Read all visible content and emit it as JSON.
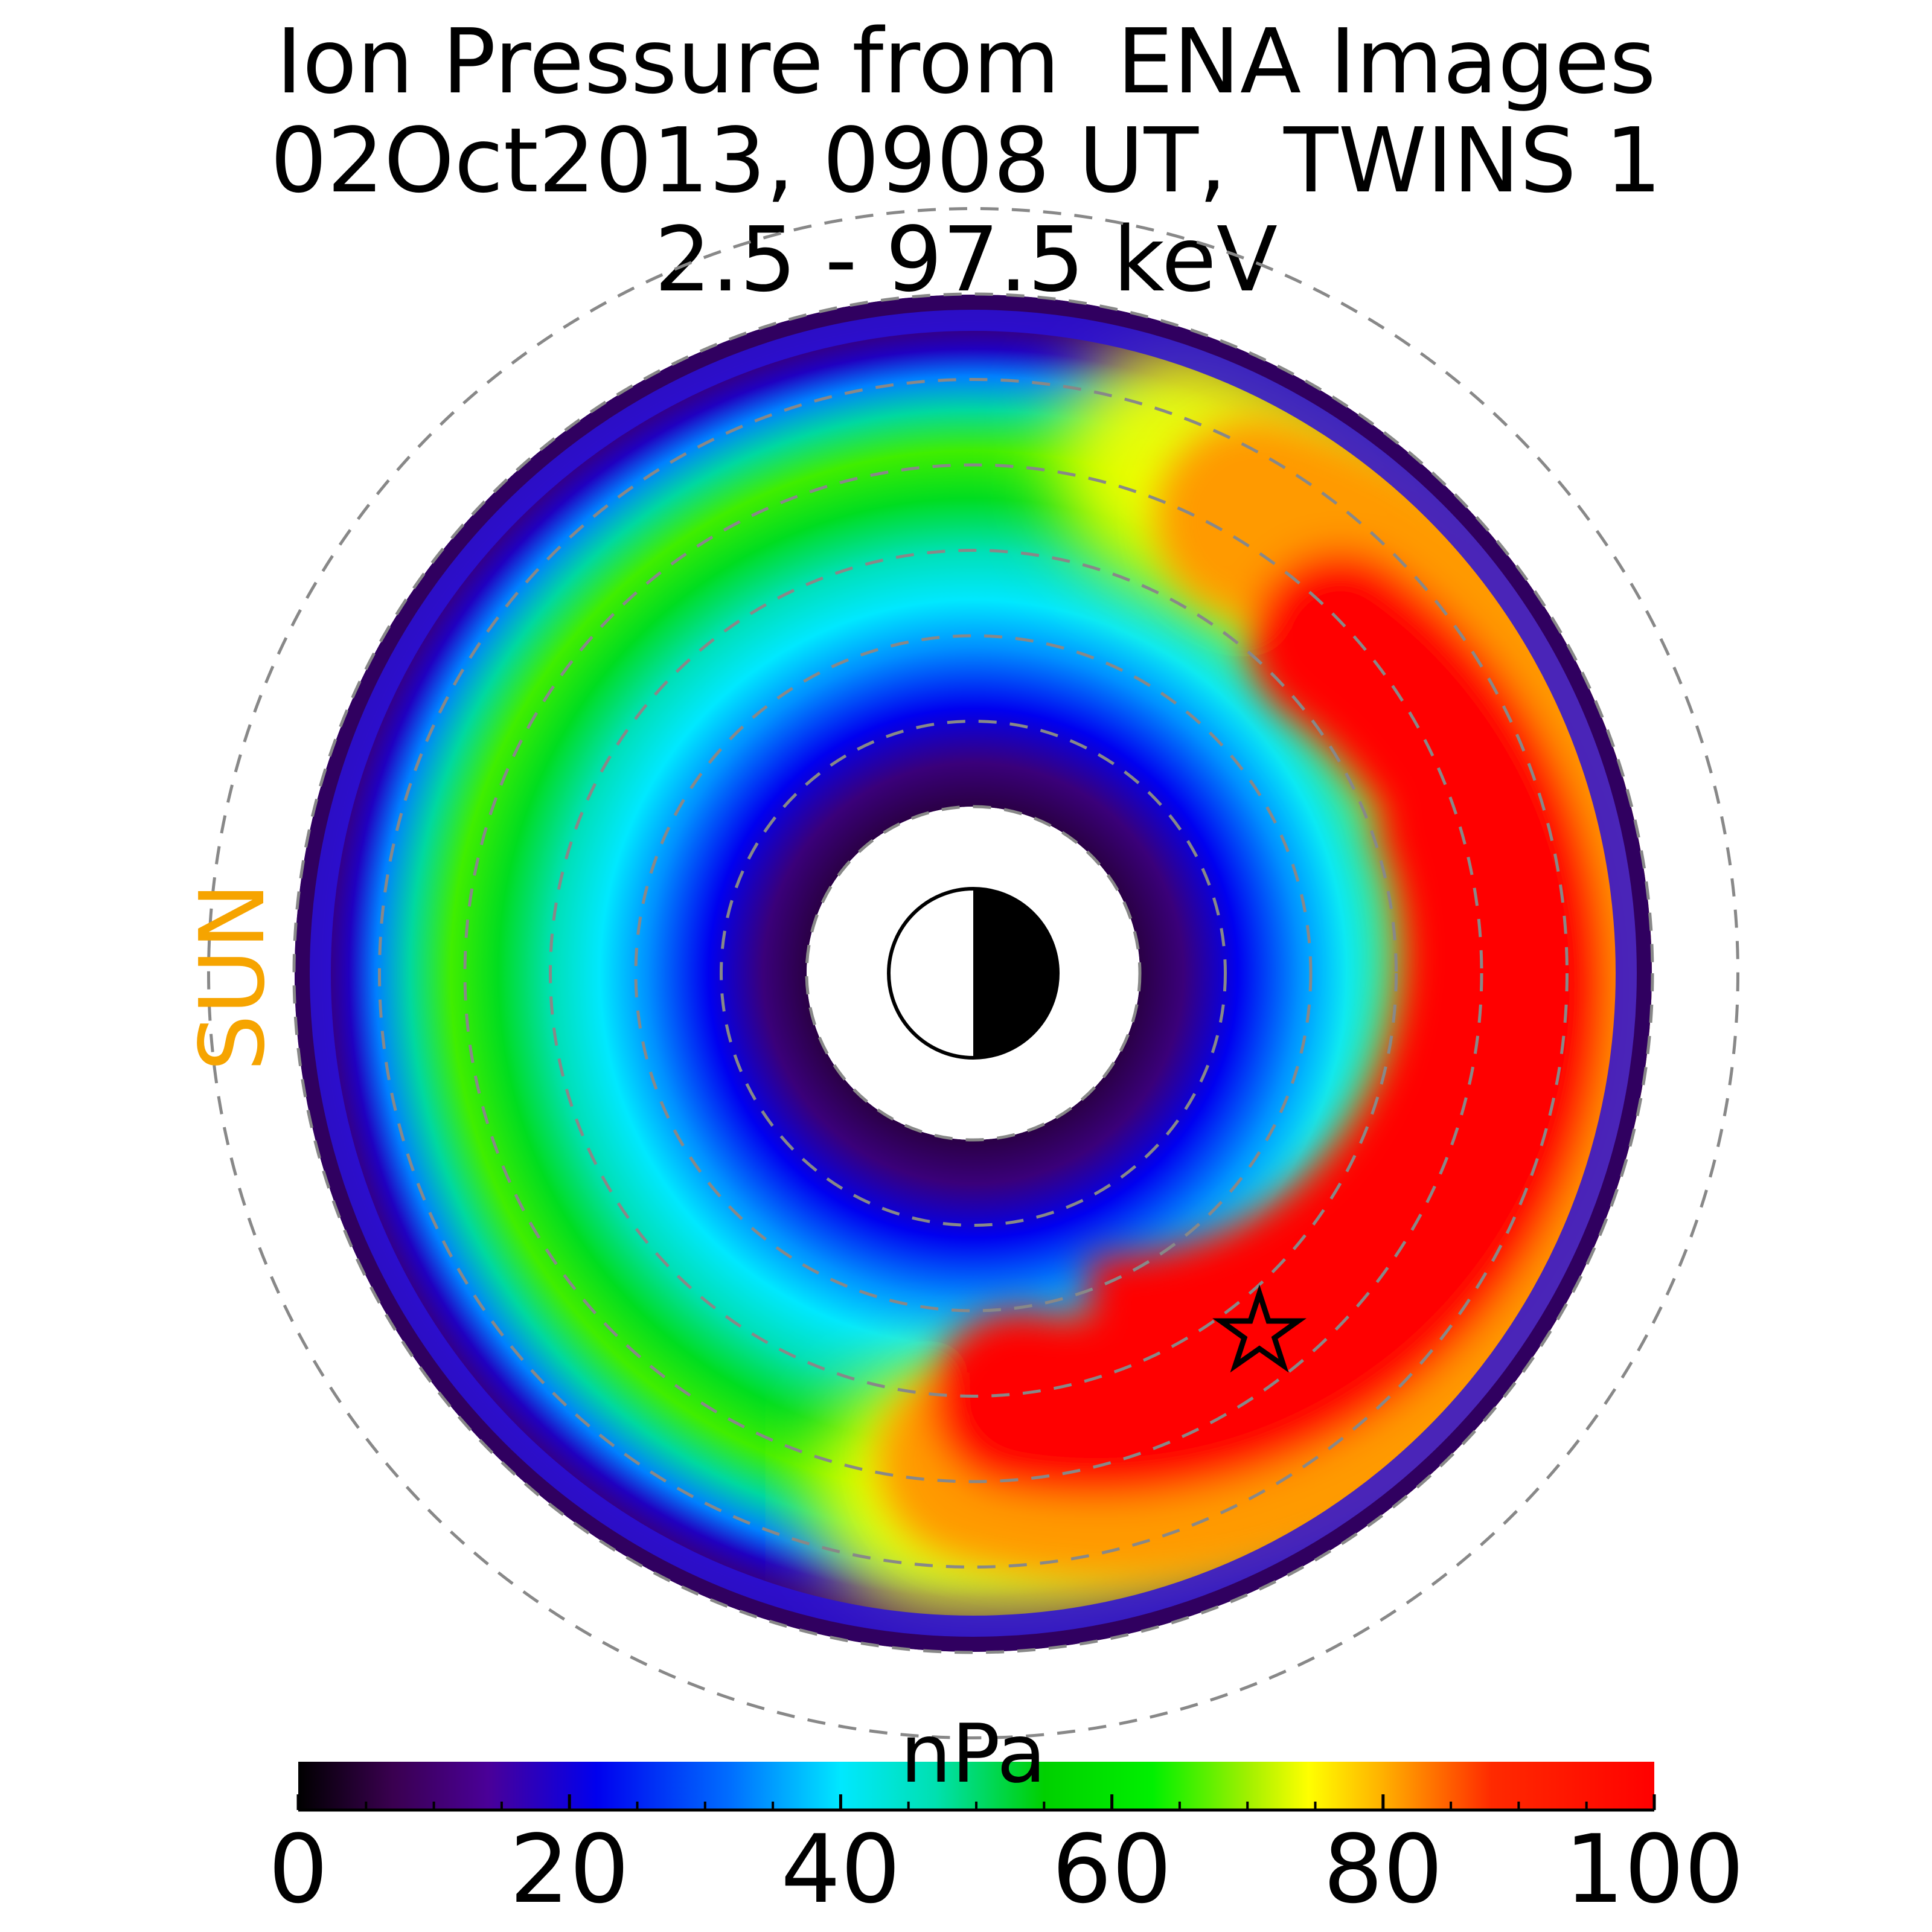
{
  "title": {
    "line1": "Ion Pressure from  ENA Images",
    "line2": "02Oct2013, 0908 UT,  TWINS 1",
    "line3": "2.5 - 97.5 keV"
  },
  "sun_label": "SUN",
  "colorbar": {
    "unit": "nPa",
    "min": 0,
    "max": 100,
    "ticks": [
      "0",
      "20",
      "40",
      "60",
      "80",
      "100"
    ],
    "colormap": "nipy_spectral-like (black-purple-blue-cyan-green-yellow-red)"
  },
  "chart_data": {
    "type": "heatmap",
    "projection": "polar equatorial map, Sun to the left",
    "title": "Ion Pressure from  ENA Images 02Oct2013, 0908 UT,  TWINS 1 2.5 - 97.5 keV",
    "quantity": "ion pressure",
    "unit": "nPa",
    "color_range": [
      0,
      100
    ],
    "dashed_rings_count": 7,
    "hot_spot": {
      "description": "pressure peak (red, >=90 nPa) on the dusk/night side, lower-right of Earth",
      "max_value": 100
    },
    "marker": "star at peak location, lower-right",
    "colors": {
      "min": "#000000",
      "mid": "#00e5e5",
      "max": "#ff0000",
      "sun_label": "#f6a400"
    }
  }
}
